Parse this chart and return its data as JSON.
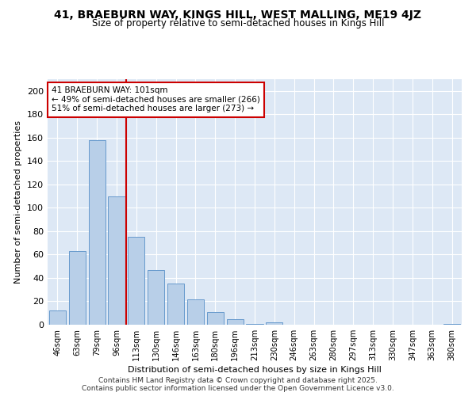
{
  "title1": "41, BRAEBURN WAY, KINGS HILL, WEST MALLING, ME19 4JZ",
  "title2": "Size of property relative to semi-detached houses in Kings Hill",
  "xlabel": "Distribution of semi-detached houses by size in Kings Hill",
  "ylabel": "Number of semi-detached properties",
  "categories": [
    "46sqm",
    "63sqm",
    "79sqm",
    "96sqm",
    "113sqm",
    "130sqm",
    "146sqm",
    "163sqm",
    "180sqm",
    "196sqm",
    "213sqm",
    "230sqm",
    "246sqm",
    "263sqm",
    "280sqm",
    "297sqm",
    "313sqm",
    "330sqm",
    "347sqm",
    "363sqm",
    "380sqm"
  ],
  "values": [
    12,
    63,
    158,
    110,
    75,
    47,
    35,
    22,
    11,
    5,
    1,
    2,
    0,
    0,
    0,
    0,
    0,
    0,
    0,
    0,
    1
  ],
  "bar_color": "#b8cfe8",
  "bar_edge_color": "#6699cc",
  "vline_x_idx": 3.5,
  "vline_color": "#cc0000",
  "annotation_title": "41 BRAEBURN WAY: 101sqm",
  "annotation_line1": "← 49% of semi-detached houses are smaller (266)",
  "annotation_line2": "51% of semi-detached houses are larger (273) →",
  "annotation_box_color": "#cc0000",
  "background_color": "#dde8f5",
  "ylim": [
    0,
    210
  ],
  "yticks": [
    0,
    20,
    40,
    60,
    80,
    100,
    120,
    140,
    160,
    180,
    200
  ],
  "footer1": "Contains HM Land Registry data © Crown copyright and database right 2025.",
  "footer2": "Contains public sector information licensed under the Open Government Licence v3.0."
}
